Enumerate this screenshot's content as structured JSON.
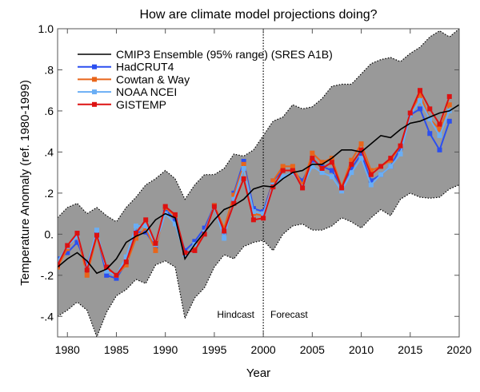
{
  "chart_data": {
    "type": "line",
    "title": "How are climate model projections doing?",
    "xlabel": "Year",
    "ylabel": "Temperature Anomaly (ref. 1980-1999)",
    "xlim": [
      1979,
      2020
    ],
    "ylim": [
      -0.5,
      1.0
    ],
    "xticks": [
      1980,
      1985,
      1990,
      1995,
      2000,
      2005,
      2010,
      2015,
      2020
    ],
    "xtick_labels": [
      "1980",
      "1985",
      "1990",
      "1995",
      "2000",
      "2005",
      "2010",
      "2015",
      "2020"
    ],
    "yticks": [
      -0.4,
      -0.2,
      0,
      0.2,
      0.4,
      0.6,
      0.8,
      1.0
    ],
    "ytick_labels": [
      "-.4",
      "-.2",
      "0.",
      ".2",
      ".4",
      ".6",
      ".8",
      "1.0"
    ],
    "grid": false,
    "legend_position": "top-left",
    "annotations": {
      "hindcast": "Hindcast",
      "forecast": "Forecast",
      "divider_year": 2000
    },
    "ensemble": {
      "name": "CMIP3 Ensemble (95% range) (SRES A1B)",
      "color": "#000000",
      "band_color": "#999999",
      "years": [
        1979,
        1980,
        1981,
        1982,
        1983,
        1984,
        1985,
        1986,
        1987,
        1988,
        1989,
        1990,
        1991,
        1992,
        1993,
        1994,
        1995,
        1996,
        1997,
        1998,
        1999,
        2000,
        2001,
        2002,
        2003,
        2004,
        2005,
        2006,
        2007,
        2008,
        2009,
        2010,
        2011,
        2012,
        2013,
        2014,
        2015,
        2016,
        2017,
        2018,
        2019,
        2020
      ],
      "mean": [
        -0.16,
        -0.12,
        -0.09,
        -0.13,
        -0.19,
        -0.17,
        -0.12,
        -0.04,
        -0.01,
        0.01,
        0.07,
        0.1,
        0.08,
        -0.12,
        -0.05,
        0.01,
        0.07,
        0.12,
        0.14,
        0.17,
        0.22,
        0.235,
        0.23,
        0.27,
        0.3,
        0.31,
        0.34,
        0.34,
        0.37,
        0.41,
        0.41,
        0.4,
        0.44,
        0.48,
        0.47,
        0.51,
        0.54,
        0.55,
        0.57,
        0.59,
        0.6,
        0.63
      ],
      "upper": [
        0.08,
        0.13,
        0.15,
        0.1,
        0.13,
        0.09,
        0.06,
        0.13,
        0.18,
        0.24,
        0.27,
        0.31,
        0.27,
        0.17,
        0.24,
        0.29,
        0.29,
        0.32,
        0.39,
        0.38,
        0.41,
        0.48,
        0.55,
        0.57,
        0.63,
        0.61,
        0.62,
        0.66,
        0.72,
        0.73,
        0.73,
        0.78,
        0.83,
        0.85,
        0.86,
        0.84,
        0.88,
        0.91,
        0.96,
        0.99,
        0.96,
        1.0
      ],
      "lower": [
        -0.4,
        -0.37,
        -0.33,
        -0.37,
        -0.5,
        -0.38,
        -0.3,
        -0.27,
        -0.22,
        -0.24,
        -0.15,
        -0.13,
        -0.16,
        -0.41,
        -0.31,
        -0.26,
        -0.16,
        -0.1,
        -0.12,
        -0.06,
        -0.04,
        -0.03,
        -0.08,
        0.0,
        0.04,
        0.05,
        0.02,
        0.02,
        0.04,
        0.08,
        0.06,
        0.03,
        0.08,
        0.12,
        0.09,
        0.17,
        0.2,
        0.18,
        0.175,
        0.18,
        0.22,
        0.24
      ]
    },
    "x": [
      1979,
      1980,
      1981,
      1982,
      1983,
      1984,
      1985,
      1986,
      1987,
      1988,
      1989,
      1990,
      1991,
      1992,
      1993,
      1994,
      1995,
      1996,
      1997,
      1998,
      1999,
      2000,
      2001,
      2002,
      2003,
      2004,
      2005,
      2006,
      2007,
      2008,
      2009,
      2010,
      2011,
      2012,
      2013,
      2014,
      2015,
      2016,
      2017,
      2018,
      2019
    ],
    "series": [
      {
        "name": "HadCRUT4",
        "color": "#2b4ff0",
        "values": [
          -0.12,
          -0.09,
          -0.04,
          -0.15,
          0.0,
          -0.2,
          -0.215,
          -0.14,
          0.01,
          0.01,
          -0.06,
          0.12,
          0.07,
          -0.08,
          -0.035,
          0.03,
          0.14,
          0.01,
          0.2,
          0.355,
          0.125,
          0.11,
          0.26,
          0.31,
          0.31,
          0.26,
          0.36,
          0.33,
          0.31,
          0.23,
          0.32,
          0.39,
          0.26,
          0.29,
          0.33,
          0.42,
          0.58,
          0.61,
          0.49,
          0.41,
          0.55
        ]
      },
      {
        "name": "Cowtan & Way",
        "color": "#e8651a",
        "values": [
          -0.16,
          -0.07,
          0.0,
          -0.2,
          -0.01,
          -0.17,
          -0.2,
          -0.15,
          -0.02,
          0.03,
          -0.08,
          0.13,
          0.09,
          -0.1,
          -0.06,
          0.01,
          0.14,
          0.03,
          0.19,
          0.34,
          0.1,
          0.09,
          0.26,
          0.33,
          0.33,
          0.24,
          0.395,
          0.35,
          0.37,
          0.23,
          0.36,
          0.44,
          0.31,
          0.33,
          0.36,
          0.43,
          0.59,
          0.68,
          0.56,
          0.51,
          0.63
        ]
      },
      {
        "name": "NOAA NCEI",
        "color": "#6aaef5",
        "values": [
          -0.13,
          -0.06,
          -0.01,
          -0.16,
          0.02,
          -0.18,
          -0.2,
          -0.11,
          0.04,
          0.04,
          -0.05,
          0.1,
          0.05,
          -0.1,
          -0.05,
          0.01,
          0.13,
          -0.02,
          0.17,
          0.32,
          0.11,
          0.1,
          0.24,
          0.28,
          0.3,
          0.23,
          0.33,
          0.3,
          0.28,
          0.21,
          0.3,
          0.37,
          0.24,
          0.29,
          0.33,
          0.39,
          0.58,
          0.65,
          0.56,
          0.48,
          0.6
        ]
      },
      {
        "name": "GISTEMP",
        "color": "#dd1111",
        "values": [
          -0.15,
          -0.055,
          0.005,
          -0.175,
          -0.005,
          -0.16,
          -0.2,
          -0.135,
          0.005,
          0.07,
          -0.045,
          0.135,
          0.095,
          -0.09,
          -0.08,
          0.0,
          0.135,
          0.015,
          0.15,
          0.27,
          0.07,
          0.078,
          0.23,
          0.31,
          0.31,
          0.225,
          0.37,
          0.32,
          0.35,
          0.225,
          0.34,
          0.41,
          0.29,
          0.33,
          0.37,
          0.43,
          0.59,
          0.7,
          0.61,
          0.535,
          0.67
        ]
      }
    ]
  }
}
